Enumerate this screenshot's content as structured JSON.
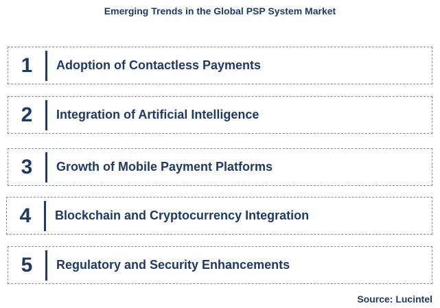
{
  "title": "Emerging Trends in the Global PSP System Market",
  "trends": [
    {
      "number": "1",
      "label": "Adoption of Contactless Payments"
    },
    {
      "number": "2",
      "label": "Integration of Artificial Intelligence"
    },
    {
      "number": "3",
      "label": "Growth of Mobile Payment Platforms"
    },
    {
      "number": "4",
      "label": "Blockchain and Cryptocurrency Integration"
    },
    {
      "number": "5",
      "label": "Regulatory and Security Enhancements"
    }
  ],
  "source": "Source: Lucintel",
  "colors": {
    "text": "#1f3864",
    "border": "#7f8a99",
    "background": "#ffffff"
  }
}
